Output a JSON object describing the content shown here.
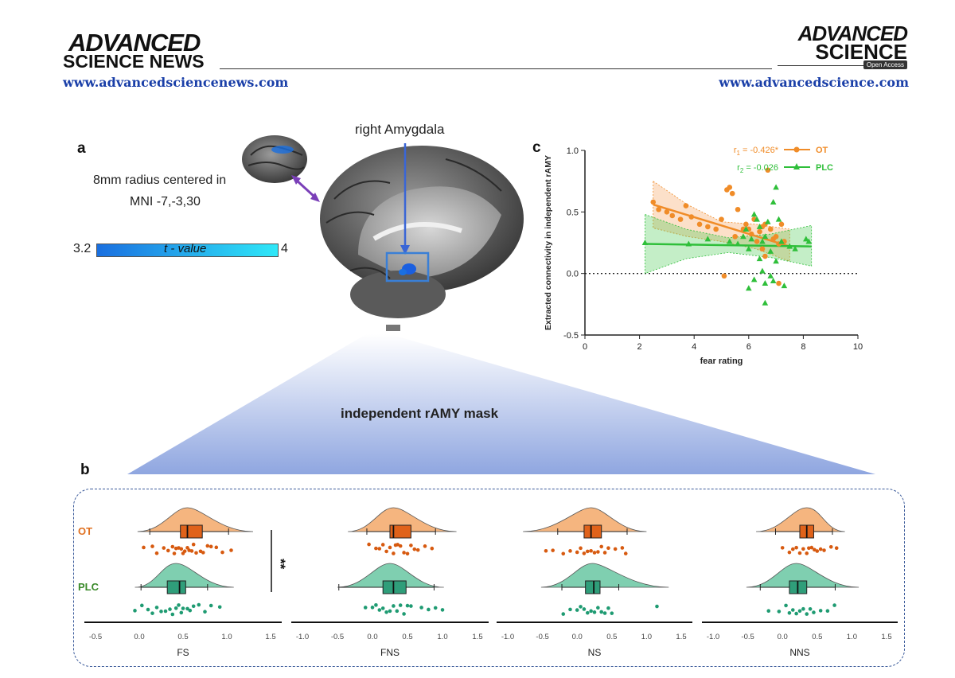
{
  "header": {
    "left_logo_line1": "ADVANCED",
    "left_logo_line2": "SCIENCE NEWS",
    "left_url": "www.advancedsciencenews.com",
    "right_logo_line1": "ADVANCED",
    "right_logo_line2": "SCIENCE",
    "right_logo_badge": "Open Access",
    "right_url": "www.advancedscience.com"
  },
  "panel_a": {
    "label": "a",
    "roi_text_line1": "8mm radius centered in",
    "roi_text_line2": "MNI -7,-3,30",
    "colorbar_min": "3.2",
    "colorbar_max": "4",
    "colorbar_label": "t - value",
    "brain_label": "right Amygdala"
  },
  "mask_label": "independent rAMY mask",
  "chart_data": [
    {
      "type": "scatter",
      "panel": "c",
      "xlabel": "fear rating",
      "ylabel": "Extracted connectivity in independent rAMY",
      "xlim": [
        0,
        10
      ],
      "ylim": [
        -0.5,
        1.0
      ],
      "xticks": [
        "0",
        "2",
        "4",
        "6",
        "8",
        "10"
      ],
      "yticks": [
        "-0.5",
        "0.0",
        "0.5",
        "1.0"
      ],
      "legend": [
        {
          "name": "OT",
          "r_label": "r",
          "r_sub": "1",
          "r_value": " = -0.426*",
          "color": "#f08c28",
          "marker": "circle"
        },
        {
          "name": "PLC",
          "r_label": "r",
          "r_sub": "2",
          "r_value": " = -0.026",
          "color": "#2fbf3a",
          "marker": "triangle"
        }
      ],
      "series": [
        {
          "name": "OT",
          "color": "#f08c28",
          "fit": {
            "x0": 2.5,
            "y0": 0.56,
            "x1": 7.5,
            "y1": 0.22
          },
          "band_lo": [
            0.37,
            0.3,
            0.26,
            0.2,
            0.1
          ],
          "band_hi": [
            0.75,
            0.56,
            0.42,
            0.4,
            0.36
          ],
          "band_x": [
            2.5,
            3.75,
            5.0,
            6.25,
            7.5
          ],
          "points": [
            [
              2.5,
              0.58
            ],
            [
              2.7,
              0.52
            ],
            [
              3.0,
              0.5
            ],
            [
              3.2,
              0.47
            ],
            [
              3.5,
              0.44
            ],
            [
              3.7,
              0.55
            ],
            [
              3.9,
              0.46
            ],
            [
              4.2,
              0.4
            ],
            [
              4.5,
              0.38
            ],
            [
              4.8,
              0.36
            ],
            [
              5.0,
              0.44
            ],
            [
              5.2,
              0.68
            ],
            [
              5.3,
              0.7
            ],
            [
              5.4,
              0.65
            ],
            [
              5.5,
              0.3
            ],
            [
              5.6,
              0.52
            ],
            [
              5.8,
              0.36
            ],
            [
              5.9,
              0.4
            ],
            [
              6.0,
              0.36
            ],
            [
              6.1,
              0.32
            ],
            [
              6.2,
              0.44
            ],
            [
              6.3,
              0.26
            ],
            [
              6.4,
              0.34
            ],
            [
              6.5,
              0.38
            ],
            [
              6.5,
              0.2
            ],
            [
              6.6,
              0.4
            ],
            [
              6.7,
              0.84
            ],
            [
              6.8,
              0.36
            ],
            [
              6.9,
              0.28
            ],
            [
              7.0,
              0.3
            ],
            [
              7.1,
              0.24
            ],
            [
              7.2,
              0.4
            ],
            [
              7.3,
              0.26
            ],
            [
              7.1,
              -0.08
            ],
            [
              5.1,
              -0.02
            ],
            [
              6.6,
              0.14
            ]
          ]
        },
        {
          "name": "PLC",
          "color": "#2fbf3a",
          "fit": {
            "x0": 2.2,
            "y0": 0.24,
            "x1": 8.3,
            "y1": 0.22
          },
          "band_lo": [
            0.0,
            0.12,
            0.17,
            0.13,
            0.06
          ],
          "band_hi": [
            0.48,
            0.36,
            0.29,
            0.32,
            0.39
          ],
          "band_x": [
            2.2,
            3.7,
            5.25,
            6.8,
            8.3
          ],
          "points": [
            [
              2.2,
              0.25
            ],
            [
              3.8,
              0.24
            ],
            [
              4.5,
              0.28
            ],
            [
              5.3,
              0.26
            ],
            [
              5.6,
              0.24
            ],
            [
              5.8,
              0.3
            ],
            [
              5.9,
              0.36
            ],
            [
              6.0,
              0.2
            ],
            [
              6.1,
              0.28
            ],
            [
              6.2,
              0.48
            ],
            [
              6.3,
              0.44
            ],
            [
              6.4,
              0.38
            ],
            [
              6.4,
              0.12
            ],
            [
              6.5,
              0.26
            ],
            [
              6.5,
              0.02
            ],
            [
              6.6,
              0.3
            ],
            [
              6.6,
              -0.08
            ],
            [
              6.7,
              0.42
            ],
            [
              6.8,
              0.18
            ],
            [
              6.9,
              0.58
            ],
            [
              6.9,
              -0.06
            ],
            [
              7.0,
              0.7
            ],
            [
              7.0,
              0.1
            ],
            [
              7.1,
              0.44
            ],
            [
              7.2,
              0.26
            ],
            [
              7.3,
              -0.1
            ],
            [
              7.5,
              0.22
            ],
            [
              6.2,
              -0.05
            ],
            [
              6.0,
              -0.12
            ],
            [
              6.6,
              -0.24
            ],
            [
              8.1,
              0.28
            ],
            [
              8.2,
              0.26
            ],
            [
              7.7,
              0.2
            ],
            [
              6.8,
              -0.02
            ]
          ]
        }
      ],
      "reference_line_y": 0.0
    },
    {
      "type": "raincloud",
      "panel": "b",
      "group_labels": [
        "OT",
        "PLC"
      ],
      "significance": "**",
      "colors": {
        "OT": "#f5b57f",
        "OT_box": "#e0621a",
        "PLC": "#7fcfb0",
        "PLC_box": "#2f9e7a"
      },
      "subplots": [
        {
          "name": "FS",
          "xlim": [
            -0.5,
            1.5
          ],
          "xticks": [
            "-0.5",
            "0.0",
            "0.5",
            "1.0",
            "1.5"
          ],
          "OT": {
            "q1": 0.47,
            "median": 0.55,
            "q3": 0.72,
            "whisker_lo": 0.12,
            "whisker_hi": 1.02,
            "density_center": 0.55,
            "density_lo": -0.02,
            "density_hi": 1.3,
            "points": [
              0.05,
              0.15,
              0.2,
              0.28,
              0.33,
              0.38,
              0.4,
              0.42,
              0.45,
              0.48,
              0.5,
              0.52,
              0.55,
              0.57,
              0.6,
              0.62,
              0.65,
              0.7,
              0.73,
              0.78,
              0.82,
              0.88,
              0.95,
              1.05
            ]
          },
          "PLC": {
            "q1": 0.32,
            "median": 0.46,
            "q3": 0.53,
            "whisker_lo": 0.02,
            "whisker_hi": 0.78,
            "density_center": 0.42,
            "density_lo": -0.05,
            "density_hi": 1.08,
            "points": [
              -0.05,
              0.03,
              0.1,
              0.15,
              0.2,
              0.25,
              0.3,
              0.35,
              0.38,
              0.42,
              0.45,
              0.48,
              0.5,
              0.55,
              0.58,
              0.62,
              0.68,
              0.75,
              0.82,
              0.92
            ]
          }
        },
        {
          "name": "FNS",
          "xlim": [
            -1.0,
            1.5
          ],
          "xticks": [
            "-1.0",
            "-0.5",
            "0.0",
            "0.5",
            "1.0",
            "1.5"
          ],
          "OT": {
            "q1": 0.25,
            "median": 0.3,
            "q3": 0.55,
            "whisker_lo": -0.08,
            "whisker_hi": 0.9,
            "density_center": 0.3,
            "density_lo": -0.35,
            "density_hi": 1.2,
            "points": [
              -0.05,
              0.05,
              0.1,
              0.15,
              0.2,
              0.25,
              0.3,
              0.33,
              0.36,
              0.4,
              0.45,
              0.5,
              0.55,
              0.6,
              0.65,
              0.75,
              0.85
            ]
          },
          "PLC": {
            "q1": 0.15,
            "median": 0.3,
            "q3": 0.48,
            "whisker_lo": -0.48,
            "whisker_hi": 0.88,
            "density_center": 0.25,
            "density_lo": -0.5,
            "density_hi": 1.02,
            "points": [
              -0.1,
              0.0,
              0.05,
              0.1,
              0.15,
              0.2,
              0.25,
              0.3,
              0.35,
              0.4,
              0.45,
              0.5,
              0.55,
              0.7,
              0.8,
              0.9,
              1.0
            ]
          }
        },
        {
          "name": "NS",
          "xlim": [
            -1.0,
            1.5
          ],
          "xticks": [
            "-1.0",
            "-0.5",
            "0.0",
            "0.5",
            "1.0",
            "1.5"
          ],
          "OT": {
            "q1": 0.1,
            "median": 0.2,
            "q3": 0.35,
            "whisker_lo": -0.28,
            "whisker_hi": 0.72,
            "density_center": 0.2,
            "density_lo": -0.78,
            "density_hi": 1.0,
            "points": [
              -0.45,
              -0.35,
              -0.2,
              -0.1,
              0.0,
              0.05,
              0.1,
              0.15,
              0.2,
              0.25,
              0.3,
              0.35,
              0.4,
              0.45,
              0.55,
              0.65,
              0.7
            ]
          },
          "PLC": {
            "q1": 0.12,
            "median": 0.24,
            "q3": 0.33,
            "whisker_lo": -0.22,
            "whisker_hi": 0.6,
            "density_center": 0.22,
            "density_lo": -0.52,
            "density_hi": 1.32,
            "points": [
              -0.2,
              -0.1,
              0.0,
              0.05,
              0.1,
              0.15,
              0.2,
              0.25,
              0.3,
              0.35,
              0.4,
              0.45,
              0.5,
              1.15
            ]
          }
        },
        {
          "name": "NNS",
          "xlim": [
            -1.0,
            1.5
          ],
          "xticks": [
            "-1.0",
            "-0.5",
            "0.0",
            "0.5",
            "1.0",
            "1.5"
          ],
          "OT": {
            "q1": 0.25,
            "median": 0.35,
            "q3": 0.45,
            "whisker_lo": -0.1,
            "whisker_hi": 0.72,
            "density_center": 0.35,
            "density_lo": -0.38,
            "density_hi": 0.9,
            "points": [
              0.0,
              0.1,
              0.15,
              0.2,
              0.25,
              0.3,
              0.35,
              0.38,
              0.42,
              0.46,
              0.5,
              0.55,
              0.6,
              0.7,
              0.78
            ]
          },
          "PLC": {
            "q1": 0.1,
            "median": 0.22,
            "q3": 0.35,
            "whisker_lo": -0.32,
            "whisker_hi": 0.76,
            "density_center": 0.2,
            "density_lo": -0.52,
            "density_hi": 1.1,
            "points": [
              -0.2,
              -0.05,
              0.05,
              0.1,
              0.15,
              0.2,
              0.25,
              0.3,
              0.35,
              0.4,
              0.45,
              0.55,
              0.65,
              0.75
            ]
          }
        }
      ]
    }
  ],
  "panel_labels": {
    "b": "b",
    "c": "c"
  }
}
